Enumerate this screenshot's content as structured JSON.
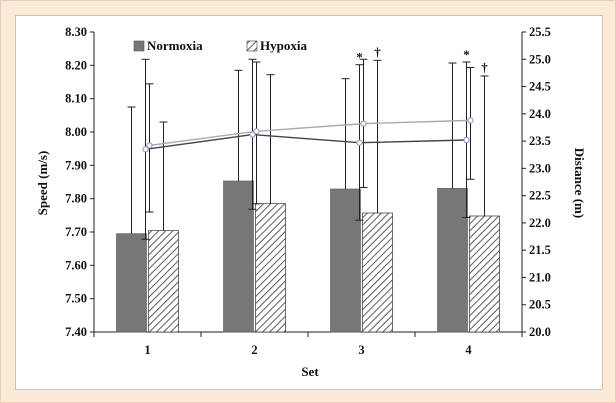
{
  "chart_data": {
    "type": "bar",
    "xlabel": "Set",
    "ylabel": "Speed (m/s)",
    "y2label": "Distance (m)",
    "categories": [
      "1",
      "2",
      "3",
      "4"
    ],
    "ylim": [
      7.4,
      8.3
    ],
    "yticks": [
      "7.40",
      "7.50",
      "7.60",
      "7.70",
      "7.80",
      "7.90",
      "8.00",
      "8.10",
      "8.20",
      "8.30"
    ],
    "y2lim": [
      20.0,
      25.5
    ],
    "y2ticks": [
      "20.0",
      "20.5",
      "21.0",
      "21.5",
      "22.0",
      "22.5",
      "23.0",
      "23.5",
      "24.0",
      "24.5",
      "25.0",
      "25.5"
    ],
    "series": [
      {
        "name": "Normoxia",
        "kind": "bar",
        "axis": "left",
        "values": [
          7.695,
          7.853,
          7.829,
          7.831
        ],
        "error_upper": [
          8.075,
          8.185,
          8.16,
          8.207
        ]
      },
      {
        "name": "Hypoxia",
        "kind": "bar",
        "axis": "left",
        "values": [
          7.704,
          7.785,
          7.757,
          7.748
        ],
        "error_upper": [
          8.03,
          8.172,
          8.215,
          8.168
        ]
      },
      {
        "kind": "line",
        "axis": "right",
        "values": [
          23.35,
          23.62,
          23.47,
          23.52
        ],
        "error_upper": [
          25.0,
          25.0,
          24.9,
          24.95
        ],
        "error_lower": [
          21.7,
          22.25,
          22.05,
          22.1
        ]
      },
      {
        "kind": "line",
        "axis": "right",
        "values": [
          23.42,
          23.68,
          23.82,
          23.88
        ],
        "error_upper": [
          24.55,
          24.95,
          25.0,
          24.85
        ],
        "error_lower": [
          22.2,
          22.35,
          22.65,
          22.8
        ]
      }
    ],
    "annotations": [
      {
        "category": "3",
        "label": "*"
      },
      {
        "category": "3",
        "label": "†"
      },
      {
        "category": "4",
        "label": "*"
      },
      {
        "category": "4",
        "label": "†"
      }
    ],
    "legend_position": "top-left",
    "grid": false,
    "colors": {
      "normoxia_bar": "#777777",
      "hypoxia_hatch": "#333333",
      "line_dark": "#444444",
      "line_light": "#aaaaaa",
      "marker_fill": "#ffffff",
      "marker_stroke": "#8a8fd0"
    }
  }
}
